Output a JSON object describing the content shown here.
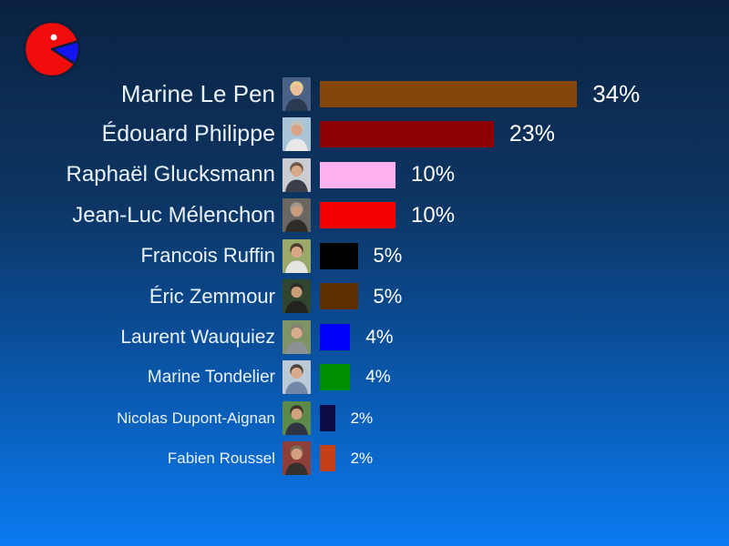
{
  "slide": {
    "background_top_color": "#0a2240",
    "background_bottom_color": "#0a7bf2"
  },
  "logo": {
    "label": "pie-chart-logo",
    "body_color": "#f20d0d",
    "slice_color": "#1414f0",
    "eye_color": "#ffffff",
    "outline_color": "#0b1f3a"
  },
  "chart_data": {
    "type": "bar",
    "orientation": "horizontal",
    "title": "",
    "unit": "%",
    "value_range": [
      0,
      34
    ],
    "grid": false,
    "legend": false,
    "categories": [
      "Marine Le Pen",
      "Édouard Philippe",
      "Raphaël Glucksmann",
      "Jean-Luc Mélenchon",
      "Francois Ruffin",
      "Éric Zemmour",
      "Laurent Wauquiez",
      "Marine Tondelier",
      "Nicolas Dupont-Aignan",
      "Fabien Roussel"
    ],
    "values": [
      34,
      23,
      10,
      10,
      5,
      5,
      4,
      4,
      2,
      2
    ],
    "value_labels": [
      "34%",
      "23%",
      "10%",
      "10%",
      "5%",
      "5%",
      "4%",
      "4%",
      "2%",
      "2%"
    ],
    "bar_colors": [
      "#85460a",
      "#8b0000",
      "#ffb0f0",
      "#f40000",
      "#000000",
      "#5c2e00",
      "#0000fa",
      "#008f00",
      "#0a0a45",
      "#c44018"
    ],
    "photo_palettes": [
      {
        "bg": "#4a6285",
        "hair": "#e9d18c",
        "skin": "#edbe9c",
        "shirt": "#2b3950"
      },
      {
        "bg": "#a9c4d6",
        "hair": "#c9c2b8",
        "skin": "#d8a483",
        "shirt": "#e8e8e8"
      },
      {
        "bg": "#c9cdd2",
        "hair": "#6b5742",
        "skin": "#d8a989",
        "shirt": "#3a3f4a"
      },
      {
        "bg": "#6a6661",
        "hair": "#9e968c",
        "skin": "#c79b7b",
        "shirt": "#2e2b28"
      },
      {
        "bg": "#9aa86a",
        "hair": "#4a3b2d",
        "skin": "#d8a888",
        "shirt": "#e5e5e0"
      },
      {
        "bg": "#31452f",
        "hair": "#2e2a26",
        "skin": "#c89c78",
        "shirt": "#23221f"
      },
      {
        "bg": "#7e9467",
        "hair": "#8a7f6e",
        "skin": "#d8ac8c",
        "shirt": "#8c9196"
      },
      {
        "bg": "#bccad8",
        "hair": "#4f4238",
        "skin": "#d8a98c",
        "shirt": "#7388a8"
      },
      {
        "bg": "#5c8a4a",
        "hair": "#3e3428",
        "skin": "#d3a180",
        "shirt": "#2e3442"
      },
      {
        "bg": "#8e4038",
        "hair": "#7a6a58",
        "skin": "#d3a080",
        "shirt": "#33302e"
      }
    ]
  }
}
